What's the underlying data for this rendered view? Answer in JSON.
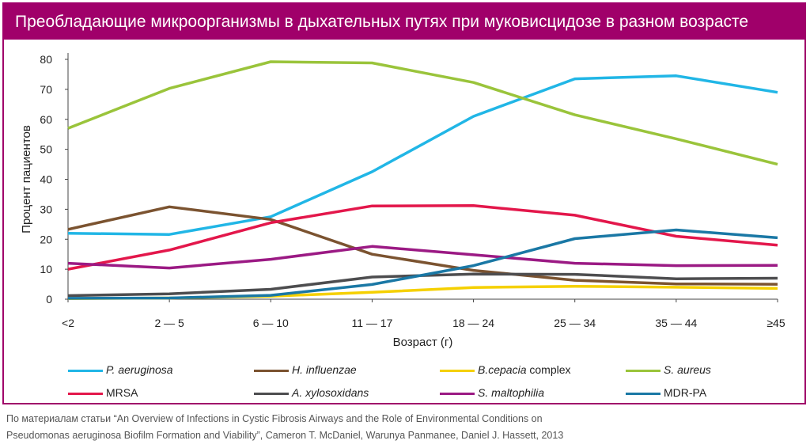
{
  "chart_data": {
    "type": "line",
    "title": "Преобладающие микроорганизмы в дыхательных путях при муковисцидозе в разном возрасте",
    "xlabel": "Возраст (г)",
    "ylabel": "Процент пациентов",
    "ylim": [
      0,
      80
    ],
    "yticks": [
      0,
      10,
      20,
      30,
      40,
      50,
      60,
      70,
      80
    ],
    "grid": false,
    "legend_position": "bottom",
    "categories": [
      "<2",
      "2 — 5",
      "6 — 10",
      "11 — 17",
      "18 — 24",
      "25 — 34",
      "35 — 44",
      "≥45"
    ],
    "series": [
      {
        "name": "P. aeruginosa",
        "italic": true,
        "color": "#21b6e6",
        "values": [
          22,
          21.6,
          27.5,
          42.5,
          61,
          73.5,
          74.5,
          69
        ]
      },
      {
        "name": "H. influenzae",
        "italic": true,
        "color": "#7b5330",
        "values": [
          23.3,
          30.8,
          26.6,
          15,
          9.6,
          6.3,
          5.1,
          5
        ]
      },
      {
        "name_part1": "B.cepacia",
        "name_part2": " complex",
        "italic": true,
        "color": "#f5d000",
        "values": [
          0.2,
          0.4,
          1,
          2.3,
          3.9,
          4.3,
          4,
          3.6
        ]
      },
      {
        "name": "S. aureus",
        "italic": true,
        "color": "#9ac43b",
        "values": [
          57,
          70.3,
          79.2,
          78.8,
          72.3,
          61.5,
          53.5,
          45
        ]
      },
      {
        "name": "MRSA",
        "italic": false,
        "color": "#e3174b",
        "values": [
          10,
          16.4,
          25.5,
          31.1,
          31.2,
          28,
          21,
          18
        ]
      },
      {
        "name": "A. xylosoxidans",
        "italic": true,
        "color": "#4d4d4f",
        "values": [
          1.2,
          1.8,
          3.3,
          7.4,
          8.4,
          8.3,
          6.8,
          7
        ]
      },
      {
        "name": "S. maltophilia",
        "italic": true,
        "color": "#9b1a84",
        "values": [
          12,
          10.4,
          13.3,
          17.6,
          14.8,
          12,
          11.2,
          11.3
        ]
      },
      {
        "name": "MDR-PA",
        "italic": false,
        "color": "#1a78a5",
        "values": [
          0.3,
          0.4,
          1.3,
          4.9,
          11.2,
          20.2,
          23.1,
          20.5
        ]
      }
    ]
  },
  "source": {
    "line1": "По материалам статьи “An Overview of Infections in Cystic Fibrosis Airways and the Role of Environmental Conditions on",
    "line2": "Pseudomonas aeruginosa Biofilm Formation and Viability”, Cameron T. McDaniel, Warunya Panmanee, Daniel J. Hassett, 2013"
  }
}
